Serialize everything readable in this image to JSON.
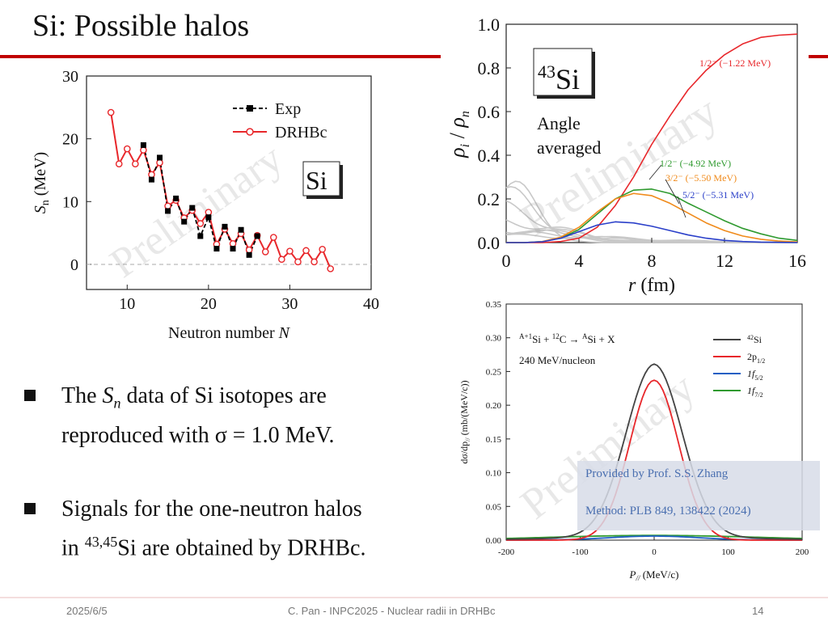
{
  "slide": {
    "title": "Si: Possible halos",
    "footer_date": "2025/6/5",
    "footer_center": "C. Pan - INPC2025 - Nuclear radii in DRHBc",
    "page_number": "14",
    "colors": {
      "accent_red": "#c00000"
    }
  },
  "bullets": [
    {
      "pre": "The ",
      "sym": "S",
      "sub": "n",
      "post": " data of Si isotopes are",
      "line2": "reproduced with σ = 1.0 MeV."
    },
    {
      "line1": "Signals for the one-neutron halos",
      "pre2": "in ",
      "sup": "43,45",
      "post2": "Si are obtained by DRHBc."
    }
  ],
  "note": {
    "line1": "Provided by Prof. S.S. Zhang",
    "line2": "Method: PLB 849, 138422 (2024)"
  },
  "chart_data": [
    {
      "type": "line",
      "watermark": "Preliminary",
      "xlabel": "Neutron number",
      "xlabel_italic": "N",
      "ylabel": "S",
      "ylabel_sub": "n",
      "ylabel_unit": " (MeV)",
      "xlim": [
        5,
        40
      ],
      "ylim": [
        -4,
        30
      ],
      "xticks": [
        10,
        20,
        30,
        40
      ],
      "yticks": [
        0,
        10,
        20,
        30
      ],
      "inset_label": "Si",
      "legend_position": "top-right",
      "series": [
        {
          "name": "Exp",
          "color": "#000000",
          "x": [
            12,
            13,
            14,
            15,
            16,
            17,
            18,
            19,
            20,
            21,
            22,
            23,
            24,
            25,
            26
          ],
          "y": [
            19.0,
            13.5,
            17.0,
            8.5,
            10.5,
            6.8,
            9.0,
            4.5,
            7.5,
            2.5,
            6.0,
            2.5,
            5.5,
            1.5,
            4.5
          ]
        },
        {
          "name": "DRHBc",
          "color": "#e8272b",
          "x": [
            8,
            9,
            10,
            11,
            12,
            13,
            14,
            15,
            16,
            17,
            18,
            19,
            20,
            21,
            22,
            23,
            24,
            25,
            26,
            27,
            28,
            29,
            30,
            31,
            32,
            33,
            34,
            35
          ],
          "y": [
            24.2,
            16.0,
            18.4,
            16.0,
            18.2,
            14.3,
            16.2,
            9.3,
            10.2,
            7.4,
            8.6,
            6.5,
            8.3,
            3.2,
            5.6,
            3.3,
            4.9,
            2.3,
            4.6,
            2.0,
            4.3,
            0.8,
            2.1,
            0.4,
            2.2,
            0.4,
            2.4,
            -0.7
          ]
        }
      ]
    },
    {
      "type": "line",
      "watermark": "Preliminary",
      "xlabel": "r",
      "xlabel_unit": " (fm)",
      "ylabel": "ρ",
      "ylabel_sub": "i",
      "ylabel_mid": " / ",
      "ylabel2": "ρ",
      "ylabel2_sub": "n",
      "xlim": [
        0,
        16
      ],
      "ylim": [
        0,
        1.0
      ],
      "xticks": [
        0,
        4,
        8,
        12,
        16
      ],
      "yticks": [
        0.0,
        0.2,
        0.4,
        0.6,
        0.8,
        1.0
      ],
      "inset_label_sup": "43",
      "inset_label": "Si",
      "text_line1": "Angle",
      "text_line2": "averaged",
      "series": [
        {
          "label": "1/2⁻ (−1.22 MeV)",
          "color": "#e8272b",
          "x": [
            0,
            1,
            2,
            3,
            4,
            5,
            6,
            7,
            8,
            9,
            10,
            11,
            12,
            13,
            14,
            15,
            16
          ],
          "y": [
            0.0,
            0.0,
            0.0,
            0.005,
            0.02,
            0.07,
            0.17,
            0.3,
            0.45,
            0.58,
            0.7,
            0.79,
            0.86,
            0.91,
            0.94,
            0.95,
            0.955
          ]
        },
        {
          "label": "1/2⁻ (−4.92 MeV)",
          "color": "#2f9a2f",
          "x": [
            0,
            1,
            2,
            3,
            4,
            5,
            6,
            7,
            8,
            9,
            10,
            11,
            12,
            13,
            14,
            15,
            16
          ],
          "y": [
            0.0,
            0.0,
            0.005,
            0.02,
            0.06,
            0.13,
            0.2,
            0.24,
            0.245,
            0.225,
            0.18,
            0.14,
            0.1,
            0.065,
            0.04,
            0.02,
            0.01
          ]
        },
        {
          "label": "3/2⁻ (−5.50 MeV)",
          "color": "#f08a1a",
          "x": [
            0,
            1,
            2,
            3,
            4,
            5,
            6,
            7,
            8,
            9,
            10,
            11,
            12,
            13,
            14,
            15,
            16
          ],
          "y": [
            0.0,
            0.0,
            0.005,
            0.025,
            0.07,
            0.14,
            0.2,
            0.225,
            0.215,
            0.18,
            0.135,
            0.09,
            0.055,
            0.03,
            0.015,
            0.007,
            0.003
          ]
        },
        {
          "label": "5/2⁻ (−5.31 MeV)",
          "color": "#2a3fc9",
          "x": [
            0,
            1,
            2,
            3,
            4,
            5,
            6,
            7,
            8,
            9,
            10,
            11,
            12,
            13,
            14,
            15,
            16
          ],
          "y": [
            0.0,
            0.0,
            0.004,
            0.02,
            0.05,
            0.08,
            0.095,
            0.09,
            0.075,
            0.055,
            0.035,
            0.02,
            0.01,
            0.005,
            0.002,
            0.001,
            0.0
          ]
        }
      ]
    },
    {
      "type": "line",
      "watermark": "Preliminary",
      "xlabel": "P",
      "xlabel_sub": "//",
      "xlabel_unit": " (MeV/c)",
      "ylabel": "dσ/dp",
      "ylabel_sub": "//",
      "ylabel_unit": " (mb/(MeV/c))",
      "xlim": [
        -200,
        200
      ],
      "ylim": [
        0,
        0.35
      ],
      "xticks": [
        -200,
        -100,
        0,
        100,
        200
      ],
      "yticks": [
        0.0,
        0.05,
        0.1,
        0.15,
        0.2,
        0.25,
        0.3,
        0.35
      ],
      "reaction_sup1": "A+1",
      "reaction_a": "Si + ",
      "reaction_sup2": "12",
      "reaction_b": "C → ",
      "reaction_sup3": "A",
      "reaction_c": "Si + X",
      "energy": "240 MeV/nucleon",
      "series": [
        {
          "name_sup": "42",
          "name": "Si",
          "color": "#444444",
          "peak": 0.249,
          "width": 38,
          "tail": 0.012
        },
        {
          "name": "2p",
          "name_sub": "1/2",
          "color": "#e8272b",
          "peak": 0.237,
          "width": 33,
          "tail": 0.0
        },
        {
          "name": "1f",
          "name_sub": "5/2",
          "color": "#1f5fc4",
          "peak": 0.006,
          "width": 60,
          "tail": 0.0
        },
        {
          "name": "1f",
          "name_sub": "7/2",
          "color": "#2f9a2f",
          "peak": 0.007,
          "width": 140,
          "tail": 0.0
        }
      ]
    }
  ]
}
